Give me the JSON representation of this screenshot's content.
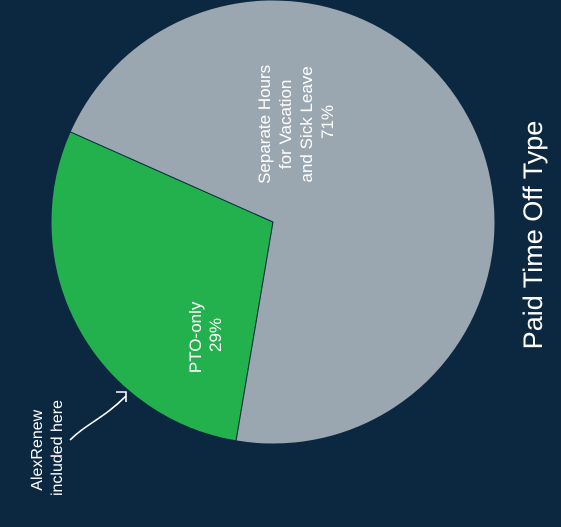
{
  "chart_data": {
    "type": "pie",
    "title": "Paid Time Off Type",
    "slices": [
      {
        "name": "PTO-only",
        "value": 29,
        "color": "#23b14d",
        "label_lines": [
          "PTO-only",
          "29%"
        ]
      },
      {
        "name": "Separate Hours for Vacation and Sick Leave",
        "value": 71,
        "color": "#9aa7b0",
        "label_lines": [
          "Separate Hours",
          "for Vacation",
          "and Sick Leave",
          "71%"
        ]
      }
    ],
    "annotation": {
      "lines": [
        "AlexRenew",
        "included here"
      ],
      "points_to": "PTO-only"
    }
  },
  "colors": {
    "background": "#0c2840",
    "label_text": "#ffffff",
    "title_text": "#ffffff"
  }
}
